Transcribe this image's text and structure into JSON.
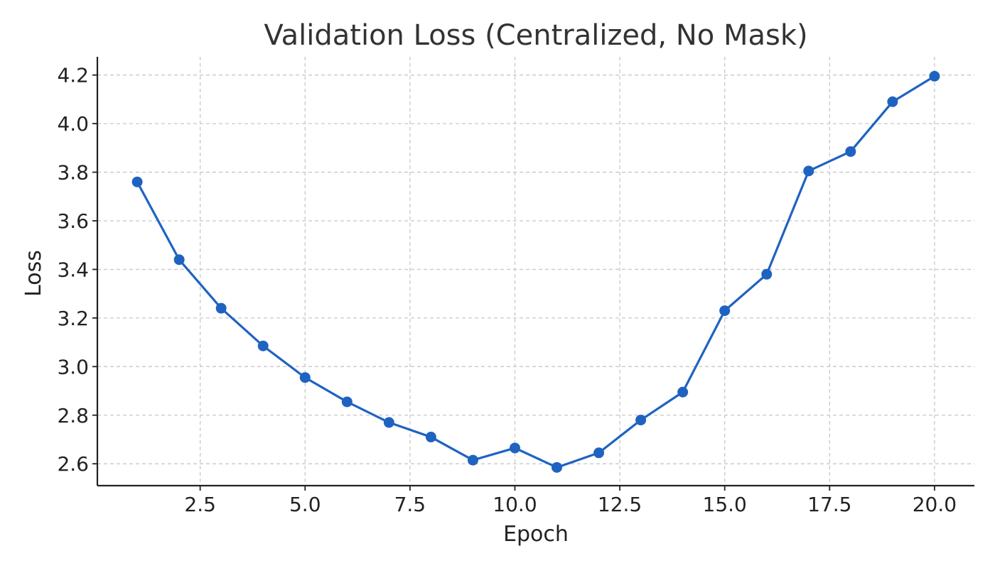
{
  "chart_data": {
    "type": "line",
    "title": "Validation Loss (Centralized, No Mask)",
    "xlabel": "Epoch",
    "ylabel": "Loss",
    "xlim": [
      0.05,
      20.95
    ],
    "ylim": [
      2.51,
      4.275
    ],
    "x_ticks": [
      2.5,
      5.0,
      7.5,
      10.0,
      12.5,
      15.0,
      17.5,
      20.0
    ],
    "x_tick_labels": [
      "2.5",
      "5.0",
      "7.5",
      "10.0",
      "12.5",
      "15.0",
      "17.5",
      "20.0"
    ],
    "y_ticks": [
      2.6,
      2.8,
      3.0,
      3.2,
      3.4,
      3.6,
      3.8,
      4.0,
      4.2
    ],
    "y_tick_labels": [
      "2.6",
      "2.8",
      "3.0",
      "3.2",
      "3.4",
      "3.6",
      "3.8",
      "4.0",
      "4.2"
    ],
    "grid": true,
    "series": [
      {
        "color": "#1f63c1",
        "marker": "circle",
        "x": [
          1,
          2,
          3,
          4,
          5,
          6,
          7,
          8,
          9,
          10,
          11,
          12,
          13,
          14,
          15,
          16,
          17,
          18,
          19,
          20
        ],
        "y": [
          3.76,
          3.44,
          3.24,
          3.085,
          2.955,
          2.855,
          2.77,
          2.71,
          2.615,
          2.665,
          2.585,
          2.645,
          2.78,
          2.895,
          3.23,
          3.38,
          3.805,
          3.885,
          4.09,
          4.195
        ]
      }
    ]
  }
}
